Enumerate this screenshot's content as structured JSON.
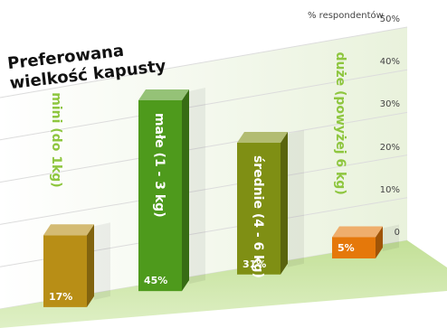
{
  "chart_data": {
    "type": "bar",
    "title": "Preferowana wielkość kapusty",
    "title_lines": [
      "Preferowana",
      "wielkość kapusty"
    ],
    "ylabel": "% respondentów",
    "ylim": [
      0,
      50
    ],
    "yticks": [
      "0",
      "10%",
      "20%",
      "30%",
      "40%",
      "50%"
    ],
    "categories": [
      "mini (do 1kg)",
      "małe (1 - 3 kg)",
      "średnie (4 - 6 kg)",
      "duże (powyżej 6 kg)"
    ],
    "values": [
      17,
      45,
      31,
      5
    ],
    "value_labels": [
      "17%",
      "45%",
      "31%",
      "5%"
    ],
    "colors": {
      "mini": "#b88e16",
      "male": "#4e9a1c",
      "srednie": "#7f8f14",
      "duze": "#e5780a",
      "category_label_green": "#8ec63f",
      "floor": "#cfe7a6"
    }
  }
}
